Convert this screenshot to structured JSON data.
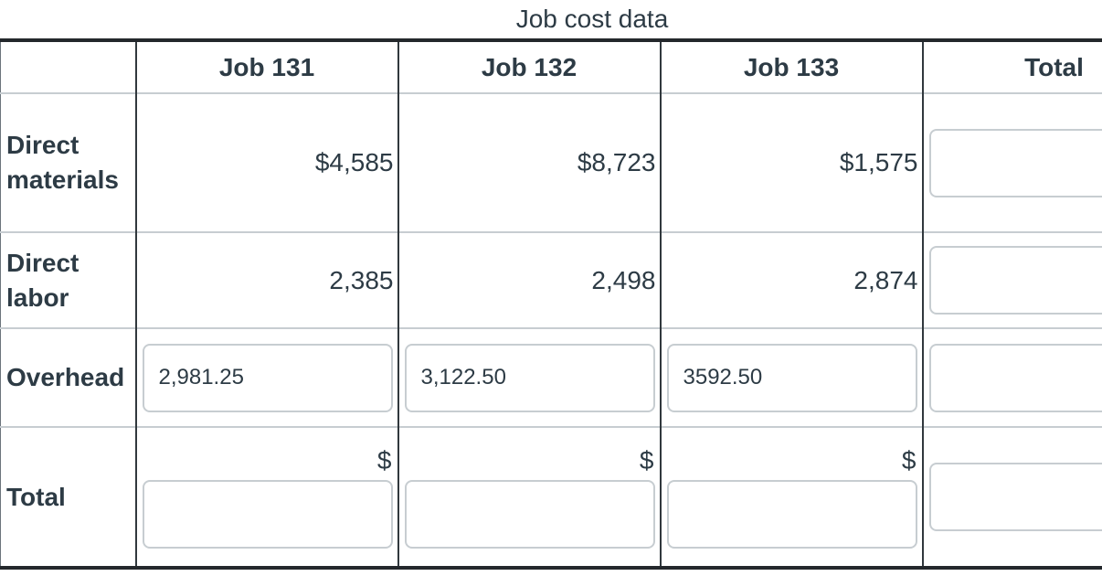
{
  "title": "Job cost data",
  "table": {
    "columns": [
      "",
      "Job 131",
      "Job 132",
      "Job 133",
      "Total"
    ],
    "rows": {
      "direct_materials": {
        "label": "Direct materials",
        "job131": "$4,585",
        "job132": "$8,723",
        "job133": "$1,575",
        "total_input": ""
      },
      "direct_labor": {
        "label": "Direct labor",
        "job131": "2,385",
        "job132": "2,498",
        "job133": "2,874",
        "total_input": ""
      },
      "overhead": {
        "label": "Overhead",
        "job131_input": "2,981.25",
        "job132_input": "3,122.50",
        "job133_input": "3592.50",
        "total_input": ""
      },
      "total": {
        "label": "Total",
        "currency_symbol": "$",
        "job131_input": "",
        "job132_input": "",
        "job133_input": "",
        "total_input": ""
      }
    }
  },
  "colors": {
    "text": "#2D3B45",
    "outer_border": "#24282C",
    "column_border": "#31383D",
    "row_separator": "#C7CDD1",
    "input_border": "#C7CDD1"
  }
}
